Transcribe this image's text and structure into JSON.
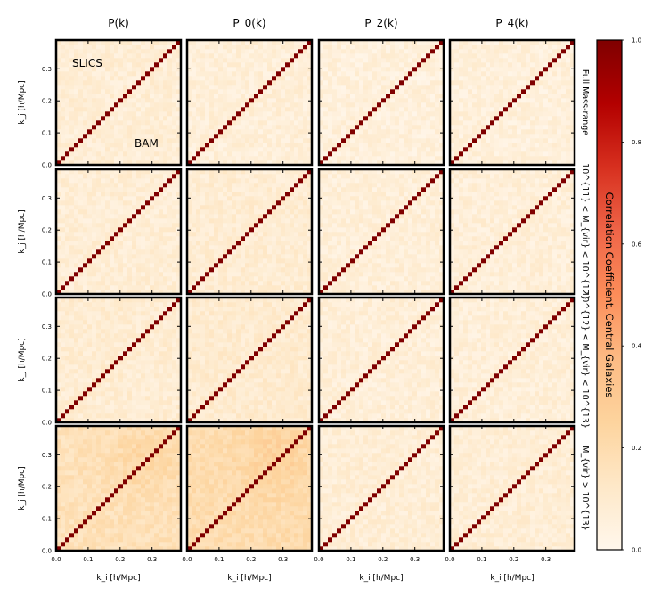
{
  "chart_data": {
    "type": "heatmap",
    "column_titles": [
      "P(k)",
      "P_0(k)",
      "P_2(k)",
      "P_4(k)"
    ],
    "row_titles": [
      "Full Mass-range",
      "10^{11} < M_{vir} < 10^{12}",
      "10^{12} ≤ M_{vir} < 10^{13}",
      "M_{vir} > 10^{13}"
    ],
    "xlabel": "k_i [h/Mpc]",
    "ylabel": "k_j [h/Mpc]",
    "xlim": [
      0.0,
      0.39
    ],
    "ylim": [
      0.0,
      0.39
    ],
    "x_ticks": [
      "0.0",
      "0.1",
      "0.2",
      "0.3"
    ],
    "y_ticks": [
      "0.0",
      "0.1",
      "0.2",
      "0.3"
    ],
    "bins_per_axis": 28,
    "annotations": {
      "upper_triangle": "SLICS",
      "lower_triangle": "BAM"
    },
    "diagonal_value": 1.0,
    "off_diagonal_typical": 0.08,
    "panel_off_diagonal_levels": [
      [
        0.08,
        0.07,
        0.06,
        0.06
      ],
      [
        0.08,
        0.09,
        0.07,
        0.07
      ],
      [
        0.09,
        0.1,
        0.07,
        0.07
      ],
      [
        0.17,
        0.2,
        0.08,
        0.08
      ]
    ],
    "colorbar": {
      "label": "Correlation Coefficient. Central Galaxies",
      "ticks": [
        "0.0",
        "0.2",
        "0.4",
        "0.6",
        "0.8",
        "1.0"
      ],
      "range": [
        0.0,
        1.0
      ],
      "colormap": "OrRd",
      "color_stops": [
        "#fff7ec",
        "#fee8c8",
        "#fdd49e",
        "#fdbb84",
        "#fc8d59",
        "#ef6548",
        "#d7301f",
        "#b30000",
        "#7f0000"
      ]
    },
    "grid": false
  }
}
